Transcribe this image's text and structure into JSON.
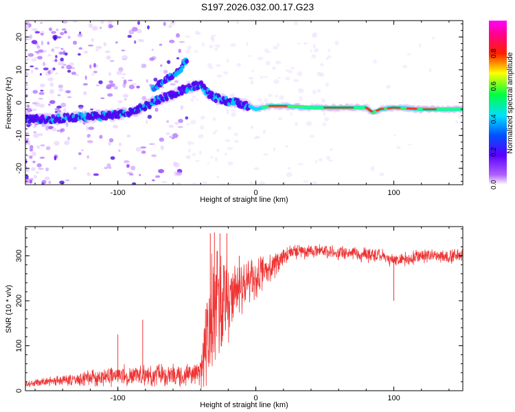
{
  "title": "S197.2026.032.00.17.G23",
  "chart_data": [
    {
      "type": "heatmap",
      "name": "spectrogram",
      "xlabel": "Height of straight line (km)",
      "ylabel": "Frequency (Hz)",
      "xlim": [
        -167,
        150
      ],
      "ylim": [
        -25,
        25
      ],
      "xticks": [
        -100,
        0,
        100
      ],
      "yticks": [
        -20,
        -10,
        0,
        10,
        20
      ],
      "colorbar": {
        "label": "Normalized spectral amplitude",
        "range": [
          0,
          1
        ],
        "ticks": [
          0.0,
          0.2,
          0.4,
          0.6,
          0.8
        ]
      },
      "ridge": {
        "x": [
          -167,
          -150,
          -130,
          -110,
          -90,
          -80,
          -70,
          -60,
          -50,
          -45,
          -40,
          -35,
          -30,
          -25,
          -20,
          -15,
          -10,
          -5,
          0,
          10,
          20,
          40,
          60,
          80,
          85,
          90,
          100,
          120,
          140,
          150
        ],
        "freq": [
          -5,
          -5,
          -4.5,
          -4,
          -3,
          -1,
          1,
          2.5,
          4.5,
          5,
          5.5,
          3,
          1.5,
          1,
          0.5,
          0,
          -0.5,
          -1,
          -2,
          -1,
          -1,
          -1.5,
          -1.5,
          -1.5,
          -3,
          -2,
          -1.5,
          -2,
          -2,
          -2
        ]
      },
      "upper_branch": {
        "x": [
          -75,
          -65,
          -55,
          -52,
          -50
        ],
        "freq": [
          4,
          7,
          10,
          12,
          13
        ]
      }
    },
    {
      "type": "line",
      "name": "snr",
      "xlabel": "Height of straight line (km)",
      "ylabel": "SNR (10 * v/v)",
      "xlim": [
        -167,
        150
      ],
      "ylim": [
        0,
        365
      ],
      "xticks": [
        -100,
        0,
        100
      ],
      "yticks": [
        0,
        100,
        200,
        300
      ],
      "color": "#ee3333",
      "envelope": {
        "x": [
          -167,
          -150,
          -130,
          -110,
          -90,
          -70,
          -50,
          -40,
          -38,
          -35,
          -30,
          -25,
          -20,
          -15,
          -10,
          -5,
          0,
          5,
          10,
          15,
          20,
          25,
          30,
          50,
          70,
          90,
          100,
          120,
          150
        ],
        "mean": [
          15,
          20,
          25,
          30,
          35,
          35,
          35,
          40,
          60,
          120,
          180,
          200,
          210,
          220,
          230,
          240,
          250,
          260,
          275,
          285,
          295,
          305,
          310,
          310,
          305,
          300,
          290,
          300,
          300
        ],
        "spread": [
          8,
          12,
          18,
          25,
          30,
          30,
          28,
          30,
          90,
          160,
          150,
          140,
          110,
          90,
          70,
          60,
          55,
          50,
          45,
          40,
          25,
          20,
          20,
          20,
          20,
          18,
          18,
          18,
          18
        ]
      },
      "spikes": [
        {
          "x": -100,
          "y": 125
        },
        {
          "x": -82,
          "y": 158
        },
        {
          "x": -33,
          "y": 350
        },
        {
          "x": -30,
          "y": 352
        },
        {
          "x": -26,
          "y": 350
        },
        {
          "x": -21,
          "y": 350
        },
        {
          "x": -12,
          "y": 300
        },
        {
          "x": 100,
          "y": 200
        }
      ]
    }
  ]
}
